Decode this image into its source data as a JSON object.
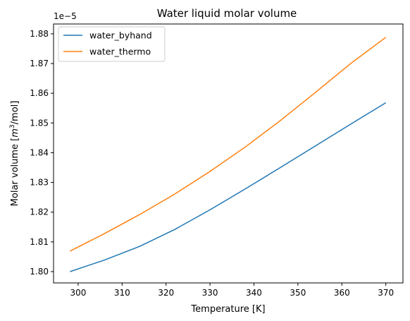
{
  "chart_data": {
    "type": "line",
    "title": "Water liquid molar volume",
    "xlabel": "Temperature [K]",
    "ylabel_prefix": "Molar volume [",
    "ylabel_unit_base": "m",
    "ylabel_unit_exp": "3",
    "ylabel_suffix": "/mol]",
    "offset_text": "1e−5",
    "xlim": [
      294.4,
      373.9
    ],
    "ylim": [
      1.7962,
      1.8833
    ],
    "x_ticks": [
      300,
      310,
      320,
      330,
      340,
      350,
      360,
      370
    ],
    "y_ticks": [
      1.8,
      1.81,
      1.82,
      1.83,
      1.84,
      1.85,
      1.86,
      1.87,
      1.88
    ],
    "y_tick_labels": [
      "1.80",
      "1.81",
      "1.82",
      "1.83",
      "1.84",
      "1.85",
      "1.86",
      "1.87",
      "1.88"
    ],
    "grid": false,
    "legend_position": "upper-left",
    "series": [
      {
        "name": "water_byhand",
        "color": "#1f77b4",
        "x": [
          298.15,
          306,
          314,
          322,
          330,
          338,
          346,
          354,
          362,
          370
        ],
        "y": [
          1.8,
          1.8039,
          1.8085,
          1.8142,
          1.8208,
          1.8278,
          1.835,
          1.8423,
          1.8496,
          1.8568
        ]
      },
      {
        "name": "water_thermo",
        "color": "#ff7f0e",
        "x": [
          298.15,
          306,
          314,
          322,
          330,
          338,
          346,
          354,
          362,
          370
        ],
        "y": [
          1.8069,
          1.8128,
          1.8192,
          1.8261,
          1.8337,
          1.8419,
          1.8508,
          1.8603,
          1.87,
          1.8788
        ]
      }
    ]
  }
}
